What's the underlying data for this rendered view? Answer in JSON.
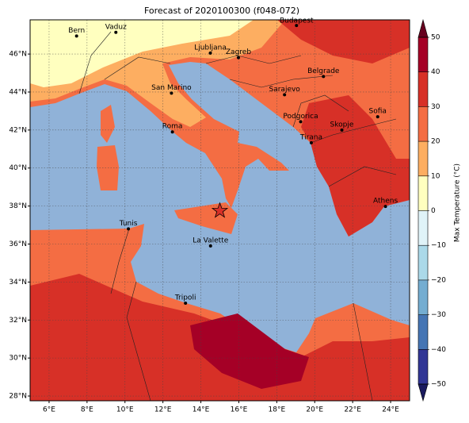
{
  "chart_data": {
    "type": "map",
    "title": "Forecast of 2020100300 (f048-072)",
    "xlim": [
      5,
      25
    ],
    "ylim": [
      27.75,
      47.8
    ],
    "xticks": [
      {
        "value": 6,
        "label": "6°E"
      },
      {
        "value": 8,
        "label": "8°E"
      },
      {
        "value": 10,
        "label": "10°E"
      },
      {
        "value": 12,
        "label": "12°E"
      },
      {
        "value": 14,
        "label": "14°E"
      },
      {
        "value": 16,
        "label": "16°E"
      },
      {
        "value": 18,
        "label": "18°E"
      },
      {
        "value": 20,
        "label": "20°E"
      },
      {
        "value": 22,
        "label": "22°E"
      },
      {
        "value": 24,
        "label": "24°E"
      }
    ],
    "yticks": [
      {
        "value": 28,
        "label": "28°N"
      },
      {
        "value": 30,
        "label": "30°N"
      },
      {
        "value": 32,
        "label": "32°N"
      },
      {
        "value": 34,
        "label": "34°N"
      },
      {
        "value": 36,
        "label": "36°N"
      },
      {
        "value": 38,
        "label": "38°N"
      },
      {
        "value": 40,
        "label": "40°N"
      },
      {
        "value": 42,
        "label": "42°N"
      },
      {
        "value": 44,
        "label": "44°N"
      },
      {
        "value": 46,
        "label": "46°N"
      }
    ],
    "grid": true,
    "cities": [
      {
        "name": "Bern",
        "lon": 7.45,
        "lat": 46.95
      },
      {
        "name": "Vaduz",
        "lon": 9.52,
        "lat": 47.14
      },
      {
        "name": "Budapest",
        "lon": 19.04,
        "lat": 47.5
      },
      {
        "name": "Ljubljana",
        "lon": 14.5,
        "lat": 46.05
      },
      {
        "name": "Zagreb",
        "lon": 15.98,
        "lat": 45.81
      },
      {
        "name": "Belgrade",
        "lon": 20.46,
        "lat": 44.82
      },
      {
        "name": "San Marino",
        "lon": 12.45,
        "lat": 43.94
      },
      {
        "name": "Sarajevo",
        "lon": 18.41,
        "lat": 43.86
      },
      {
        "name": "Sofia",
        "lon": 23.32,
        "lat": 42.7
      },
      {
        "name": "Podgorica",
        "lon": 19.26,
        "lat": 42.44
      },
      {
        "name": "Skopje",
        "lon": 21.43,
        "lat": 42.0
      },
      {
        "name": "Roma",
        "lon": 12.5,
        "lat": 41.9
      },
      {
        "name": "Tirana",
        "lon": 19.82,
        "lat": 41.33
      },
      {
        "name": "Athens",
        "lon": 23.73,
        "lat": 37.98
      },
      {
        "name": "Tunis",
        "lon": 10.18,
        "lat": 36.8
      },
      {
        "name": "La Valette",
        "lon": 14.51,
        "lat": 35.9
      },
      {
        "name": "Tripoli",
        "lon": 13.19,
        "lat": 32.89
      }
    ],
    "star": {
      "lon": 15,
      "lat": 37.75
    },
    "colorbar": {
      "label": "Max Temperature (°C)",
      "ticks": [
        {
          "value": -50,
          "label": "−50"
        },
        {
          "value": -40,
          "label": "−40"
        },
        {
          "value": -30,
          "label": "−30"
        },
        {
          "value": -20,
          "label": "−20"
        },
        {
          "value": -10,
          "label": "−10"
        },
        0,
        10,
        20,
        30,
        40,
        50
      ],
      "colors": [
        "#313695",
        "#4575b4",
        "#74add1",
        "#abd9e9",
        "#e0f3f8",
        "#ffffbf",
        "#fdae61",
        "#f46d43",
        "#d73027",
        "#a50026"
      ],
      "under_color": "#1a1a5e",
      "over_color": "#67001f"
    }
  }
}
